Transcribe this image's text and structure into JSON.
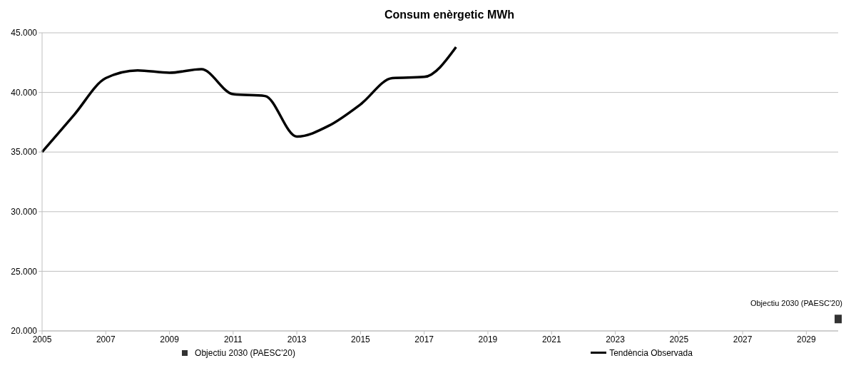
{
  "chart_data": {
    "type": "line",
    "title": "Consum enèrgetic MWh",
    "series": [
      {
        "name": "Objectiu 2030 (PAESC'20)",
        "type": "scatter",
        "marker": "square",
        "color": "#333333",
        "x": [
          2030
        ],
        "values": [
          21000
        ]
      },
      {
        "name": "Tendència Observada",
        "color": "#000000",
        "x": [
          2005,
          2006,
          2007,
          2008,
          2009,
          2010,
          2011,
          2012,
          2013,
          2014,
          2015,
          2016,
          2017,
          2018
        ],
        "values": [
          35000,
          38100,
          41200,
          41850,
          41650,
          41950,
          39850,
          39700,
          36300,
          37200,
          39000,
          41200,
          41300,
          43800
        ]
      }
    ],
    "annotations": [
      {
        "text": "Objectiu 2030 (PAESC'20)",
        "x": 2030,
        "y": 21000
      }
    ],
    "xlim": [
      2005,
      2030
    ],
    "xticks": [
      2005,
      2007,
      2009,
      2011,
      2013,
      2015,
      2017,
      2019,
      2021,
      2023,
      2025,
      2027,
      2029
    ],
    "ylim": [
      20000,
      45000
    ],
    "yticks": [
      {
        "value": 20000,
        "label": "20.000"
      },
      {
        "value": 25000,
        "label": "25.000"
      },
      {
        "value": 30000,
        "label": "30.000"
      },
      {
        "value": 35000,
        "label": "35.000"
      },
      {
        "value": 40000,
        "label": "40.000"
      },
      {
        "value": 45000,
        "label": "45.000"
      }
    ],
    "grid": "y",
    "legend": "bottom"
  }
}
